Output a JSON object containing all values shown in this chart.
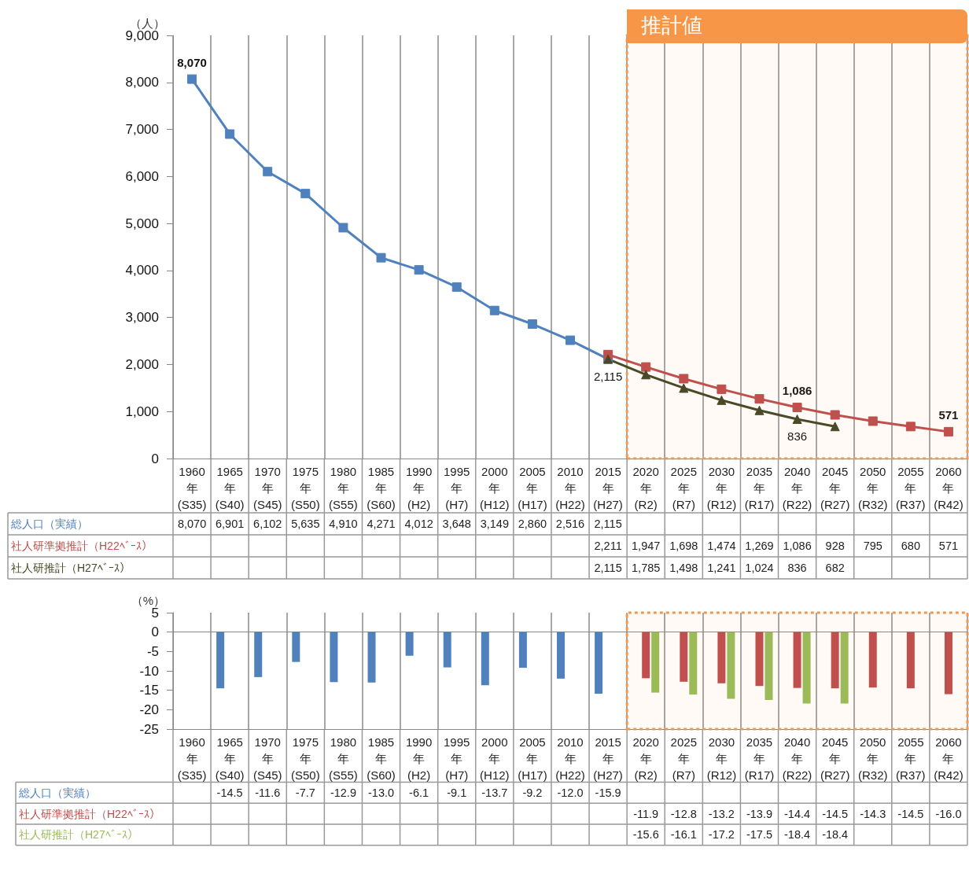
{
  "chart_data": [
    {
      "type": "line",
      "ylabel": "（人）",
      "categories": [
        "1960\n年\n(S35)",
        "1965\n年\n(S40)",
        "1970\n年\n(S45)",
        "1975\n年\n(S50)",
        "1980\n年\n(S55)",
        "1985\n年\n(S60)",
        "1990\n年\n(H2)",
        "1995\n年\n(H7)",
        "2000\n年\n(H12)",
        "2005\n年\n(H17)",
        "2010\n年\n(H22)",
        "2015\n年\n(H27)",
        "2020\n年\n(R2)",
        "2025\n年\n(R7)",
        "2030\n年\n(R12)",
        "2035\n年\n(R17)",
        "2040\n年\n(R22)",
        "2045\n年\n(R27)",
        "2050\n年\n(R32)",
        "2055\n年\n(R37)",
        "2060\n年\n(R42)"
      ],
      "series": [
        {
          "name": "総人口（実績）",
          "color": "#4f81bd",
          "marker": "square",
          "values": [
            8070,
            6901,
            6102,
            5635,
            4910,
            4271,
            4012,
            3648,
            3149,
            2860,
            2516,
            2115,
            null,
            null,
            null,
            null,
            null,
            null,
            null,
            null,
            null
          ],
          "value_labels": [
            "8,070",
            "6,901",
            "6,102",
            "5,635",
            "4,910",
            "4,271",
            "4,012",
            "3,648",
            "3,149",
            "2,860",
            "2,516",
            "2,115",
            null,
            null,
            null,
            null,
            null,
            null,
            null,
            null,
            null
          ]
        },
        {
          "name": "社人研準拠推計（H22ﾍﾞｰｽ）",
          "color": "#c0504d",
          "marker": "square",
          "values": [
            null,
            null,
            null,
            null,
            null,
            null,
            null,
            null,
            null,
            null,
            null,
            2211,
            1947,
            1698,
            1474,
            1269,
            1086,
            928,
            795,
            680,
            571
          ],
          "value_labels": [
            null,
            null,
            null,
            null,
            null,
            null,
            null,
            null,
            null,
            null,
            null,
            "2,211",
            "1,947",
            "1,698",
            "1,474",
            "1,269",
            "1,086",
            "928",
            "795",
            "680",
            "571"
          ]
        },
        {
          "name": "社人研推計（H27ﾍﾞｰｽ）",
          "color": "#4a4a28",
          "marker": "triangle",
          "values": [
            null,
            null,
            null,
            null,
            null,
            null,
            null,
            null,
            null,
            null,
            null,
            2115,
            1785,
            1498,
            1241,
            1024,
            836,
            682,
            null,
            null,
            null
          ],
          "value_labels": [
            null,
            null,
            null,
            null,
            null,
            null,
            null,
            null,
            null,
            null,
            null,
            "2,115",
            "1,785",
            "1,498",
            "1,241",
            "1,024",
            "836",
            "682",
            null,
            null,
            null
          ]
        }
      ],
      "ylim": [
        0,
        9000
      ],
      "yticks": [
        {
          "value": 0,
          "label": "0"
        },
        {
          "value": 1000,
          "label": "1,000"
        },
        {
          "value": 2000,
          "label": "2,000"
        },
        {
          "value": 3000,
          "label": "3,000"
        },
        {
          "value": 4000,
          "label": "4,000"
        },
        {
          "value": 5000,
          "label": "5,000"
        },
        {
          "value": 6000,
          "label": "6,000"
        },
        {
          "value": 7000,
          "label": "7,000"
        },
        {
          "value": 8000,
          "label": "8,000"
        },
        {
          "value": 9000,
          "label": "9,000"
        }
      ],
      "grid": "x",
      "bands": [
        {
          "axis": "x",
          "from": "2020\n年\n(R2)",
          "to": "2060\n年\n(R42)",
          "label": "推計値",
          "color": "#f79646"
        }
      ],
      "annotations": [
        {
          "text": "8,070",
          "x": "1960\n年\n(S35)",
          "y": 8070
        },
        {
          "text": "2,115",
          "x": "2015\n年\n(H27)",
          "y": 2115
        },
        {
          "text": "1,086",
          "x": "2040\n年\n(R22)",
          "y": 1086
        },
        {
          "text": "836",
          "x": "2040\n年\n(R22)",
          "y": 836
        },
        {
          "text": "571",
          "x": "2060\n年\n(R42)",
          "y": 571
        }
      ]
    },
    {
      "type": "bar",
      "ylabel": "（%）",
      "categories": [
        "1960\n年\n(S35)",
        "1965\n年\n(S40)",
        "1970\n年\n(S45)",
        "1975\n年\n(S50)",
        "1980\n年\n(S55)",
        "1985\n年\n(S60)",
        "1990\n年\n(H2)",
        "1995\n年\n(H7)",
        "2000\n年\n(H12)",
        "2005\n年\n(H17)",
        "2010\n年\n(H22)",
        "2015\n年\n(H27)",
        "2020\n年\n(R2)",
        "2025\n年\n(R7)",
        "2030\n年\n(R12)",
        "2035\n年\n(R17)",
        "2040\n年\n(R22)",
        "2045\n年\n(R27)",
        "2050\n年\n(R32)",
        "2055\n年\n(R37)",
        "2060\n年\n(R42)"
      ],
      "series": [
        {
          "name": "総人口（実績）",
          "color": "#4f81bd",
          "values": [
            null,
            -14.5,
            -11.6,
            -7.7,
            -12.9,
            -13.0,
            -6.1,
            -9.1,
            -13.7,
            -9.2,
            -12.0,
            -15.9,
            null,
            null,
            null,
            null,
            null,
            null,
            null,
            null,
            null
          ],
          "value_labels": [
            null,
            "-14.5",
            "-11.6",
            "-7.7",
            "-12.9",
            "-13.0",
            "-6.1",
            "-9.1",
            "-13.7",
            "-9.2",
            "-12.0",
            "-15.9",
            null,
            null,
            null,
            null,
            null,
            null,
            null,
            null,
            null
          ]
        },
        {
          "name": "社人研準拠推計（H22ﾍﾞｰｽ）",
          "color": "#c0504d",
          "values": [
            null,
            null,
            null,
            null,
            null,
            null,
            null,
            null,
            null,
            null,
            null,
            null,
            -11.9,
            -12.8,
            -13.2,
            -13.9,
            -14.4,
            -14.5,
            -14.3,
            -14.5,
            -16.0
          ],
          "value_labels": [
            null,
            null,
            null,
            null,
            null,
            null,
            null,
            null,
            null,
            null,
            null,
            null,
            "-11.9",
            "-12.8",
            "-13.2",
            "-13.9",
            "-14.4",
            "-14.5",
            "-14.3",
            "-14.5",
            "-16.0"
          ]
        },
        {
          "name": "社人研推計（H27ﾍﾞｰｽ）",
          "color": "#9bbb59",
          "values": [
            null,
            null,
            null,
            null,
            null,
            null,
            null,
            null,
            null,
            null,
            null,
            null,
            -15.6,
            -16.1,
            -17.2,
            -17.5,
            -18.4,
            -18.4,
            null,
            null,
            null
          ],
          "value_labels": [
            null,
            null,
            null,
            null,
            null,
            null,
            null,
            null,
            null,
            null,
            null,
            null,
            "-15.6",
            "-16.1",
            "-17.2",
            "-17.5",
            "-18.4",
            "-18.4",
            null,
            null,
            null
          ]
        }
      ],
      "ylim": [
        -25,
        5
      ],
      "yticks": [
        -25,
        -20,
        -15,
        -10,
        -5,
        0,
        5
      ],
      "grid": "x",
      "bands": [
        {
          "axis": "x",
          "from": "2020\n年\n(R2)",
          "to": "2060\n年\n(R42)",
          "color": "#f79646"
        }
      ]
    }
  ]
}
